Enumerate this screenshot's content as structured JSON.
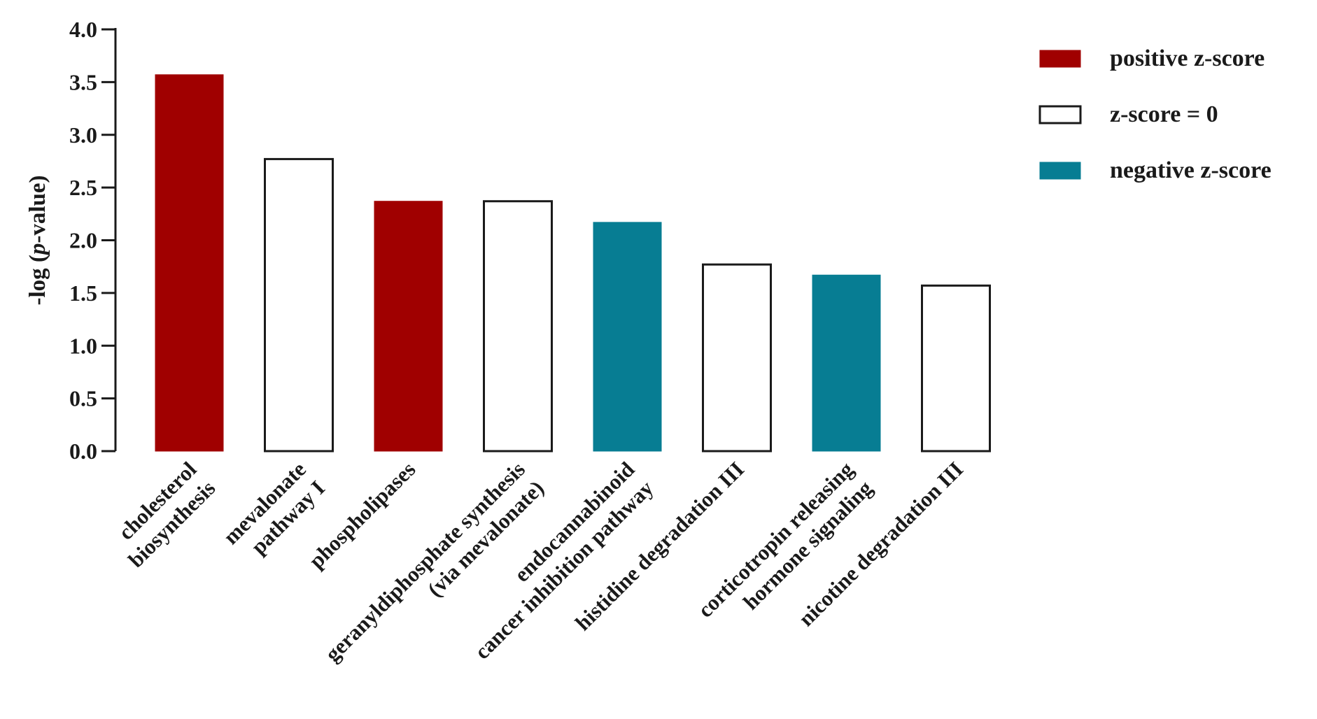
{
  "chart_data": {
    "type": "bar",
    "title": "",
    "xlabel": "",
    "ylabel_parts": [
      "-log (",
      "p",
      "-value)"
    ],
    "ylim": [
      0,
      4.0
    ],
    "yticks": [
      "0.0",
      "0.5",
      "1.0",
      "1.5",
      "2.0",
      "2.5",
      "3.0",
      "3.5",
      "4.0"
    ],
    "categories": [
      [
        "cholesterol",
        "biosynthesis"
      ],
      [
        "mevalonate",
        "pathway I"
      ],
      [
        "phospholipases"
      ],
      [
        "geranyldiphosphate synthesis",
        "(via mevalonate)"
      ],
      [
        "endocannabinoid",
        "cancer inhibition pathway"
      ],
      [
        "histidine degradation III"
      ],
      [
        "corticotropin releasing",
        "hormone signaling"
      ],
      [
        "nicotine degradation III"
      ]
    ],
    "values": [
      3.57,
      2.77,
      2.37,
      2.37,
      2.17,
      1.77,
      1.67,
      1.57
    ],
    "groups": [
      "positive",
      "zero",
      "positive",
      "zero",
      "negative",
      "zero",
      "negative",
      "zero"
    ],
    "legend": {
      "position": "top-right",
      "entries": [
        {
          "key": "positive",
          "label": "positive z-score"
        },
        {
          "key": "zero",
          "label": "z-score = 0"
        },
        {
          "key": "negative",
          "label": "negative z-score"
        }
      ]
    },
    "colors": {
      "positive": "#a00000",
      "zero": "#ffffff",
      "negative": "#077d93",
      "outline": "#1a1a1a"
    },
    "grid": false
  }
}
